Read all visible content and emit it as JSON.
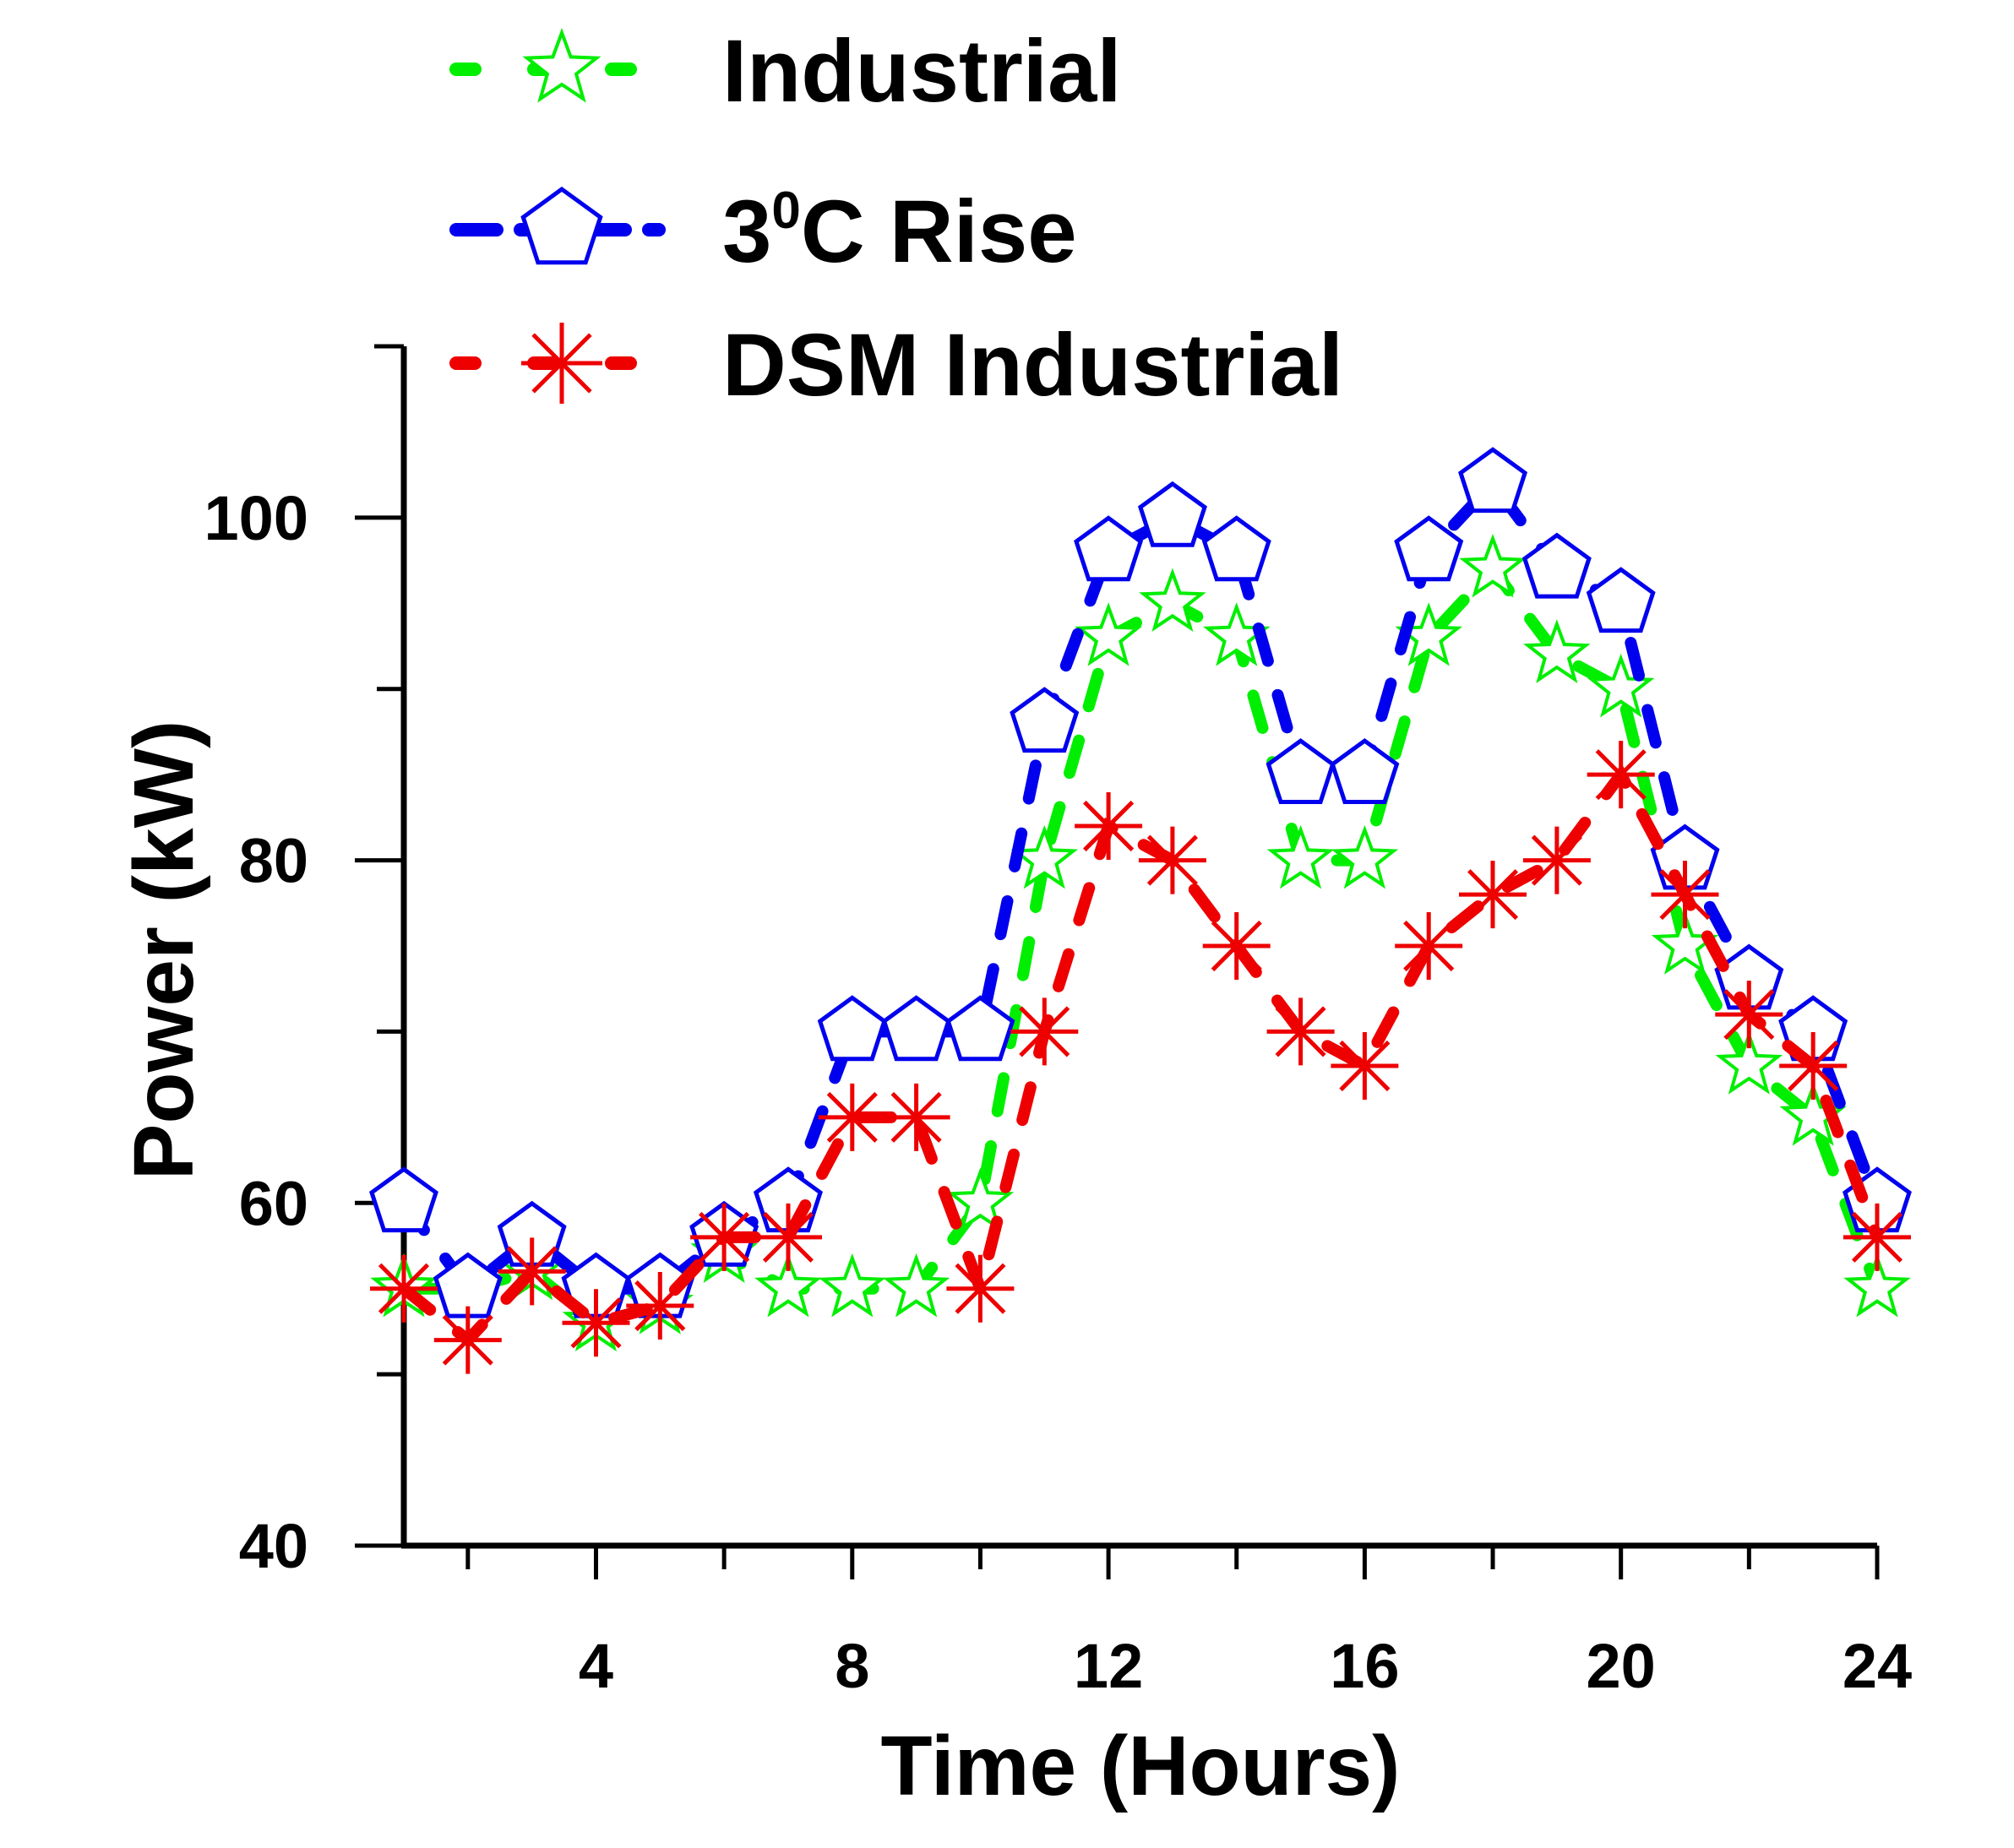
{
  "chart_data": {
    "type": "line",
    "title": "",
    "xlabel": "Time (Hours)",
    "ylabel": "Power (kW)",
    "xlim": [
      1,
      24
    ],
    "ylim": [
      40,
      110
    ],
    "x_ticks": [
      4,
      8,
      12,
      16,
      20,
      24
    ],
    "y_ticks": [
      40,
      60,
      80,
      100
    ],
    "x": [
      1,
      2,
      3,
      4,
      5,
      6,
      7,
      8,
      9,
      10,
      11,
      12,
      13,
      14,
      15,
      16,
      17,
      18,
      19,
      20,
      21,
      22,
      23,
      24
    ],
    "legend_position": "top",
    "series": [
      {
        "name": "Industrial",
        "color": "#00ee00",
        "marker": "star",
        "values": [
          55,
          55,
          56,
          53,
          54,
          57,
          55,
          55,
          55,
          60,
          80,
          93,
          95,
          93,
          80,
          80,
          93,
          97,
          92,
          90,
          75,
          68,
          65,
          55
        ]
      },
      {
        "name": "3°C Rise",
        "legend_base": "3",
        "legend_super": "0",
        "legend_rest": "C Rise",
        "color": "#0000ee",
        "marker": "pentagon",
        "values": [
          60,
          55,
          58,
          55,
          55,
          58,
          60,
          70,
          70,
          70,
          88,
          98,
          100,
          98,
          85,
          85,
          98,
          102,
          97,
          95,
          80,
          73,
          70,
          60
        ]
      },
      {
        "name": "DSM Industrial",
        "color": "#ee0000",
        "marker": "asterisk",
        "values": [
          55,
          52,
          56,
          53,
          54,
          58,
          58,
          65,
          65,
          55,
          70,
          82,
          80,
          75,
          70,
          68,
          75,
          78,
          80,
          85,
          78,
          71,
          68,
          58
        ]
      }
    ]
  }
}
